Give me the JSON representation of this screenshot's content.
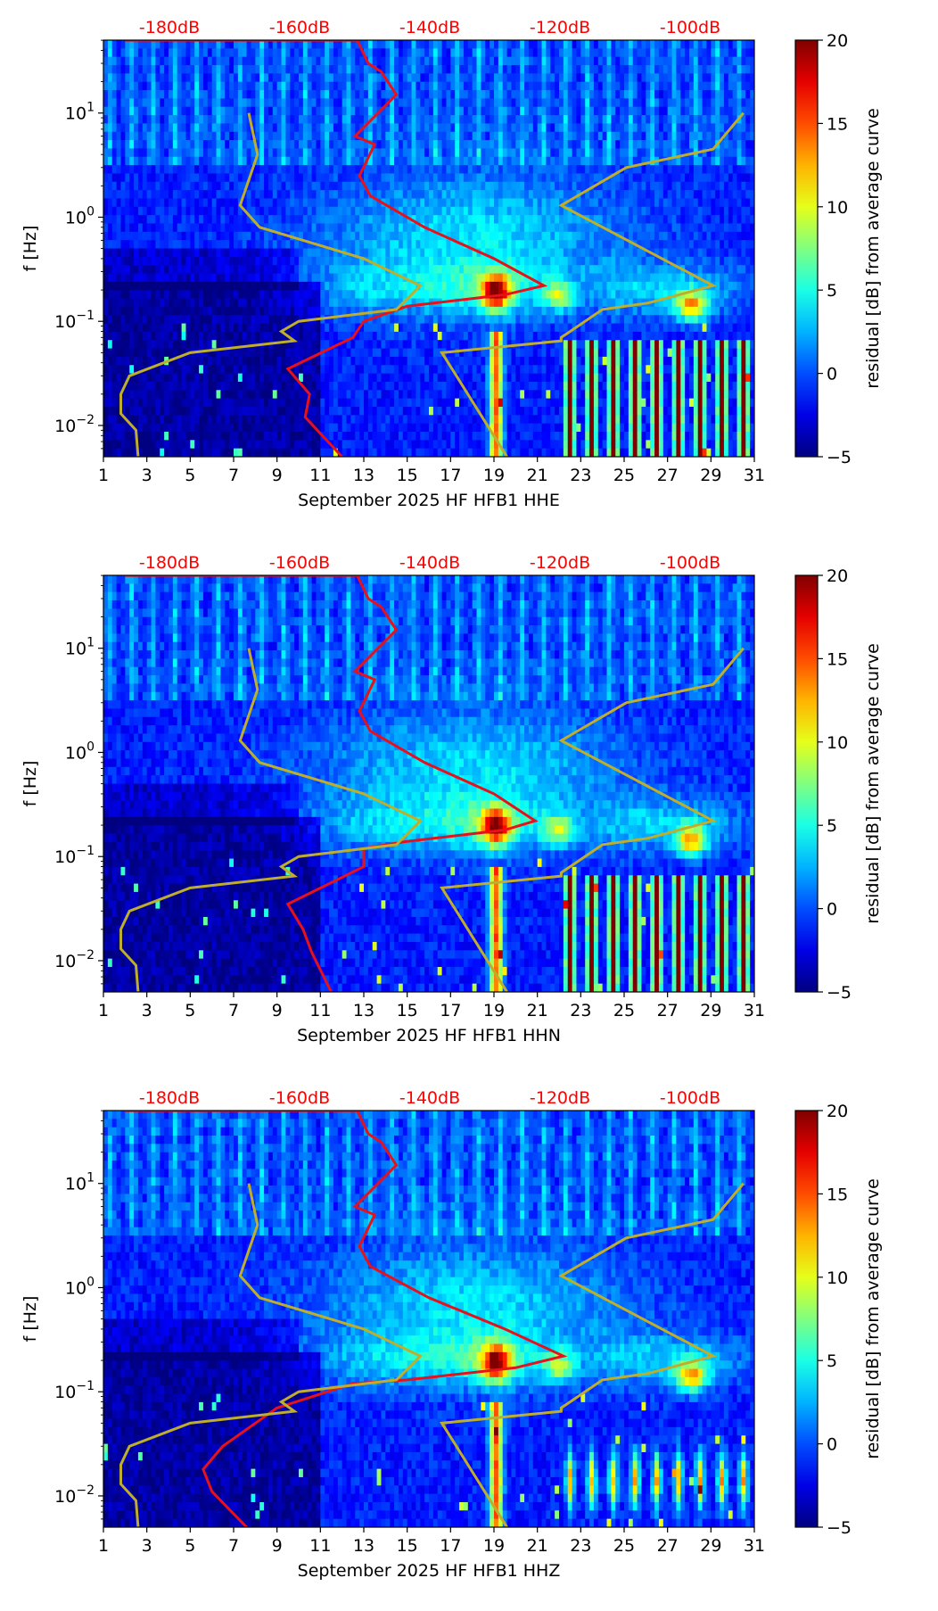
{
  "chart_data": [
    {
      "type": "heatmap",
      "title": "",
      "xlabel": "September 2025 HF HFB1  HHE",
      "ylabel": "f [Hz]",
      "xlim": [
        1,
        31
      ],
      "ylim_log10": [
        -2.3,
        1.7
      ],
      "x_ticks": [
        "1",
        "3",
        "5",
        "7",
        "9",
        "11",
        "13",
        "15",
        "17",
        "19",
        "21",
        "23",
        "25",
        "27",
        "29",
        "31"
      ],
      "y_ticks": [
        {
          "base": "10",
          "exp": "−2",
          "value": 0.01
        },
        {
          "base": "10",
          "exp": "−1",
          "value": 0.1
        },
        {
          "base": "10",
          "exp": "0",
          "value": 1
        },
        {
          "base": "10",
          "exp": "1",
          "value": 10
        }
      ],
      "top_axis_labels": [
        "-180dB",
        "-160dB",
        "-140dB",
        "-120dB",
        "-100dB"
      ],
      "colorbar": {
        "label": "residual [dB] from average curve",
        "range": [
          -5,
          20
        ],
        "ticks": [
          "−5",
          "0",
          "5",
          "10",
          "15",
          "20"
        ]
      },
      "series": [
        {
          "name": "average PSD (red)",
          "color": "#e8101a",
          "points": [
            [
              2,
              50
            ],
            [
              12.7,
              50
            ],
            [
              13.2,
              30
            ],
            [
              13.8,
              25
            ],
            [
              14.5,
              15
            ],
            [
              12.6,
              6
            ],
            [
              13.5,
              5
            ],
            [
              12.8,
              2.5
            ],
            [
              13.3,
              1.6
            ],
            [
              15.8,
              0.8
            ],
            [
              19,
              0.4
            ],
            [
              21.3,
              0.22
            ],
            [
              19.5,
              0.18
            ],
            [
              15,
              0.14
            ],
            [
              13,
              0.1
            ],
            [
              12.5,
              0.07
            ],
            [
              9.5,
              0.035
            ],
            [
              10.5,
              0.02
            ],
            [
              10.3,
              0.012
            ],
            [
              12,
              0.005
            ]
          ]
        },
        {
          "name": "reference curve (olive)",
          "color": "#bfae2c",
          "points": [
            [
              7.7,
              10
            ],
            [
              8.1,
              4
            ],
            [
              7.3,
              1.3
            ],
            [
              8.2,
              0.8
            ],
            [
              13,
              0.4
            ],
            [
              15.6,
              0.22
            ],
            [
              14.5,
              0.13
            ],
            [
              10,
              0.1
            ],
            [
              9.2,
              0.08
            ],
            [
              9.8,
              0.065
            ],
            [
              5,
              0.05
            ],
            [
              2.2,
              0.03
            ],
            [
              1.8,
              0.02
            ],
            [
              1.8,
              0.013
            ],
            [
              2.5,
              0.009
            ],
            [
              2.6,
              0.005
            ]
          ]
        },
        {
          "name": "reference curve 2 (olive)",
          "color": "#bfae2c",
          "points": [
            [
              30.5,
              10
            ],
            [
              29.1,
              4.5
            ],
            [
              25.1,
              3
            ],
            [
              22.1,
              1.3
            ],
            [
              29.1,
              0.22
            ],
            [
              26.1,
              0.15
            ],
            [
              24,
              0.13
            ],
            [
              22.1,
              0.07
            ],
            [
              22.1,
              0.065
            ],
            [
              16.6,
              0.05
            ],
            [
              19.6,
              0.005
            ]
          ]
        }
      ]
    },
    {
      "type": "heatmap",
      "title": "",
      "xlabel": "September 2025 HF HFB1  HHN",
      "ylabel": "f [Hz]",
      "xlim": [
        1,
        31
      ],
      "ylim_log10": [
        -2.3,
        1.7
      ],
      "x_ticks": [
        "1",
        "3",
        "5",
        "7",
        "9",
        "11",
        "13",
        "15",
        "17",
        "19",
        "21",
        "23",
        "25",
        "27",
        "29",
        "31"
      ],
      "y_ticks": [
        {
          "base": "10",
          "exp": "−2",
          "value": 0.01
        },
        {
          "base": "10",
          "exp": "−1",
          "value": 0.1
        },
        {
          "base": "10",
          "exp": "0",
          "value": 1
        },
        {
          "base": "10",
          "exp": "1",
          "value": 10
        }
      ],
      "top_axis_labels": [
        "-180dB",
        "-160dB",
        "-140dB",
        "-120dB",
        "-100dB"
      ],
      "colorbar": {
        "label": "residual [dB] from average curve",
        "range": [
          -5,
          20
        ],
        "ticks": [
          "−5",
          "0",
          "5",
          "10",
          "15",
          "20"
        ]
      },
      "series": [
        {
          "name": "average PSD (red)",
          "color": "#e8101a",
          "points": [
            [
              2,
              50
            ],
            [
              12.7,
              50
            ],
            [
              13.2,
              30
            ],
            [
              13.8,
              25
            ],
            [
              14.5,
              15
            ],
            [
              12.6,
              6
            ],
            [
              13.5,
              5
            ],
            [
              12.8,
              2.5
            ],
            [
              13.3,
              1.6
            ],
            [
              15.8,
              0.8
            ],
            [
              19,
              0.4
            ],
            [
              20.9,
              0.22
            ],
            [
              19.5,
              0.18
            ],
            [
              15,
              0.14
            ],
            [
              13,
              0.12
            ],
            [
              13,
              0.08
            ],
            [
              9.5,
              0.035
            ],
            [
              10.2,
              0.02
            ],
            [
              10.6,
              0.012
            ],
            [
              11.5,
              0.005
            ]
          ]
        },
        {
          "name": "reference curve (olive)",
          "color": "#bfae2c",
          "points": [
            [
              7.7,
              10
            ],
            [
              8.1,
              4
            ],
            [
              7.3,
              1.3
            ],
            [
              8.2,
              0.8
            ],
            [
              13,
              0.4
            ],
            [
              15.6,
              0.22
            ],
            [
              14.5,
              0.13
            ],
            [
              10,
              0.1
            ],
            [
              9.2,
              0.08
            ],
            [
              9.8,
              0.065
            ],
            [
              5,
              0.05
            ],
            [
              2.2,
              0.03
            ],
            [
              1.8,
              0.02
            ],
            [
              1.8,
              0.013
            ],
            [
              2.5,
              0.009
            ],
            [
              2.6,
              0.005
            ]
          ]
        },
        {
          "name": "reference curve 2 (olive)",
          "color": "#bfae2c",
          "points": [
            [
              30.5,
              10
            ],
            [
              29.1,
              4.5
            ],
            [
              25.1,
              3
            ],
            [
              22.1,
              1.3
            ],
            [
              29.1,
              0.22
            ],
            [
              26.1,
              0.15
            ],
            [
              24,
              0.13
            ],
            [
              22.1,
              0.07
            ],
            [
              22.1,
              0.065
            ],
            [
              16.6,
              0.05
            ],
            [
              19.6,
              0.005
            ]
          ]
        }
      ]
    },
    {
      "type": "heatmap",
      "title": "",
      "xlabel": "September 2025 HF HFB1  HHZ",
      "ylabel": "f [Hz]",
      "xlim": [
        1,
        31
      ],
      "ylim_log10": [
        -2.3,
        1.7
      ],
      "x_ticks": [
        "1",
        "3",
        "5",
        "7",
        "9",
        "11",
        "13",
        "15",
        "17",
        "19",
        "21",
        "23",
        "25",
        "27",
        "29",
        "31"
      ],
      "y_ticks": [
        {
          "base": "10",
          "exp": "−2",
          "value": 0.01
        },
        {
          "base": "10",
          "exp": "−1",
          "value": 0.1
        },
        {
          "base": "10",
          "exp": "0",
          "value": 1
        },
        {
          "base": "10",
          "exp": "1",
          "value": 10
        }
      ],
      "top_axis_labels": [
        "-180dB",
        "-160dB",
        "-140dB",
        "-120dB",
        "-100dB"
      ],
      "colorbar": {
        "label": "residual [dB] from average curve",
        "range": [
          -5,
          20
        ],
        "ticks": [
          "−5",
          "0",
          "5",
          "10",
          "15",
          "20"
        ]
      },
      "series": [
        {
          "name": "average PSD (red)",
          "color": "#e8101a",
          "points": [
            [
              2,
              50
            ],
            [
              12.7,
              50
            ],
            [
              13.2,
              30
            ],
            [
              13.8,
              25
            ],
            [
              14.5,
              15
            ],
            [
              12.6,
              6
            ],
            [
              13.5,
              5
            ],
            [
              12.8,
              2.5
            ],
            [
              13.3,
              1.6
            ],
            [
              16,
              0.8
            ],
            [
              19.5,
              0.4
            ],
            [
              22.2,
              0.22
            ],
            [
              20,
              0.17
            ],
            [
              15,
              0.13
            ],
            [
              12.5,
              0.12
            ],
            [
              9,
              0.07
            ],
            [
              6.5,
              0.03
            ],
            [
              5.6,
              0.018
            ],
            [
              6,
              0.011
            ],
            [
              7.6,
              0.005
            ]
          ]
        },
        {
          "name": "reference curve (olive)",
          "color": "#bfae2c",
          "points": [
            [
              7.7,
              10
            ],
            [
              8.1,
              4
            ],
            [
              7.3,
              1.3
            ],
            [
              8.2,
              0.8
            ],
            [
              13,
              0.4
            ],
            [
              15.6,
              0.22
            ],
            [
              14.5,
              0.13
            ],
            [
              10,
              0.1
            ],
            [
              9.2,
              0.08
            ],
            [
              9.8,
              0.065
            ],
            [
              5,
              0.05
            ],
            [
              2.2,
              0.03
            ],
            [
              1.8,
              0.02
            ],
            [
              1.8,
              0.013
            ],
            [
              2.5,
              0.009
            ],
            [
              2.6,
              0.005
            ]
          ]
        },
        {
          "name": "reference curve 2 (olive)",
          "color": "#bfae2c",
          "points": [
            [
              30.5,
              10
            ],
            [
              29.1,
              4.5
            ],
            [
              25.1,
              3
            ],
            [
              22.1,
              1.3
            ],
            [
              29.1,
              0.22
            ],
            [
              26.1,
              0.15
            ],
            [
              24,
              0.13
            ],
            [
              22.1,
              0.07
            ],
            [
              22.1,
              0.065
            ],
            [
              16.6,
              0.05
            ],
            [
              19.6,
              0.005
            ]
          ]
        }
      ]
    }
  ]
}
